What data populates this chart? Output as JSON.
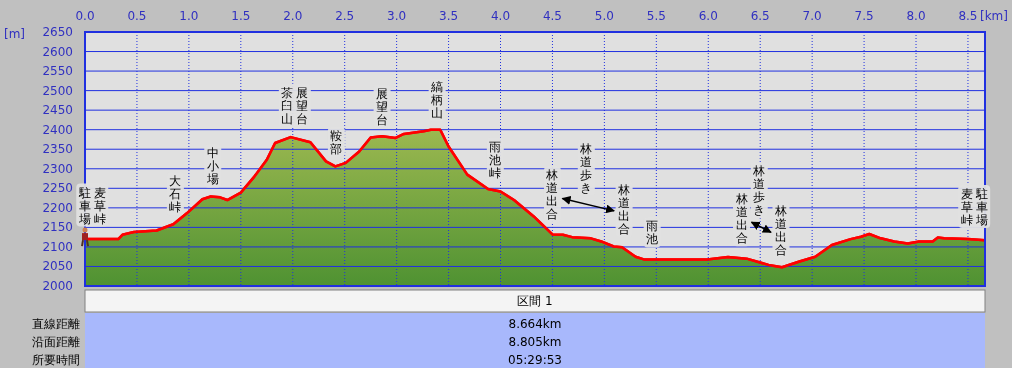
{
  "chart_data": {
    "type": "area",
    "xlabel": "[km]",
    "ylabel": "[m]",
    "xlim": [
      0,
      8.664
    ],
    "ylim": [
      2000,
      2650
    ],
    "xticks": [
      {
        "value": 0,
        "label": "0.0"
      },
      0.5,
      {
        "value": 1,
        "label": "1.0"
      },
      1.5,
      {
        "value": 2,
        "label": "2.0"
      },
      2.5,
      {
        "value": 3,
        "label": "3.0"
      },
      3.5,
      {
        "value": 4,
        "label": "4.0"
      },
      4.5,
      {
        "value": 5,
        "label": "5.0"
      },
      5.5,
      {
        "value": 6,
        "label": "6.0"
      },
      6.5,
      {
        "value": 7,
        "label": "7.0"
      },
      7.5,
      {
        "value": 8,
        "label": "8.0"
      },
      8.5
    ],
    "yticks": [
      2000,
      2050,
      2100,
      2150,
      2200,
      2250,
      2300,
      2350,
      2400,
      2450,
      2500,
      2550,
      2600,
      2650
    ],
    "grid": true,
    "series": [
      {
        "color": "#ff0000",
        "x": [
          0,
          0.15,
          0.32,
          0.36,
          0.47,
          0.69,
          0.85,
          0.98,
          1.13,
          1.21,
          1.3,
          1.37,
          1.5,
          1.63,
          1.75,
          1.83,
          1.98,
          2.17,
          2.32,
          2.41,
          2.51,
          2.64,
          2.75,
          2.86,
          2.99,
          3.07,
          3.26,
          3.33,
          3.42,
          3.5,
          3.68,
          3.88,
          4.0,
          4.13,
          4.32,
          4.5,
          4.6,
          4.69,
          4.87,
          4.97,
          5.09,
          5.17,
          5.3,
          5.38,
          5.99,
          6.19,
          6.37,
          6.58,
          6.71,
          6.87,
          7.03,
          7.19,
          7.37,
          7.47,
          7.55,
          7.66,
          7.79,
          7.92,
          8.03,
          8.16,
          8.21,
          8.27,
          8.5,
          8.664
        ],
        "values": [
          2120,
          2120,
          2120,
          2131,
          2138,
          2142,
          2158,
          2186,
          2222,
          2229,
          2227,
          2220,
          2239,
          2280,
          2323,
          2366,
          2381,
          2368,
          2319,
          2306,
          2315,
          2344,
          2380,
          2383,
          2379,
          2389,
          2396,
          2400,
          2400,
          2357,
          2285,
          2248,
          2242,
          2220,
          2178,
          2132,
          2131,
          2125,
          2122,
          2114,
          2101,
          2099,
          2075,
          2068,
          2068,
          2074,
          2070,
          2054,
          2048,
          2062,
          2075,
          2105,
          2120,
          2126,
          2133,
          2122,
          2114,
          2109,
          2114,
          2114,
          2124,
          2122,
          2120,
          2117
        ]
      }
    ],
    "annotations": [
      {
        "text": "麦草峠駐車場",
        "x": 0.07,
        "y": 2120
      },
      {
        "text": "大石峠",
        "x": 0.87,
        "y": 2162
      },
      {
        "text": "中小場",
        "x": 1.23,
        "y": 2228
      },
      {
        "text": "展望台茶臼山",
        "x": 2.02,
        "y": 2378
      },
      {
        "text": "鞍部",
        "x": 2.42,
        "y": 2307
      },
      {
        "text": "展望台",
        "x": 2.86,
        "y": 2383
      },
      {
        "text": "縞柄山",
        "x": 3.39,
        "y": 2400
      },
      {
        "text": "雨池峠",
        "x": 3.95,
        "y": 2245
      },
      {
        "text": "林道出合",
        "x": 4.5,
        "y": 2132
      },
      {
        "text": "林道出合",
        "x": 5.19,
        "y": 2095
      },
      {
        "text": "雨池",
        "x": 5.46,
        "y": 2068
      },
      {
        "text": "林道出合",
        "x": 6.32,
        "y": 2071
      },
      {
        "text": "林道出合",
        "x": 6.7,
        "y": 2048
      },
      {
        "text": "駐車場麦草峠",
        "x": 8.56,
        "y": 2119
      },
      "林道歩き",
      "林道歩き",
      "区間 1",
      "直線距離",
      "8.664km",
      "沿面距離",
      "8.805km",
      "所要時間",
      "05:29:53"
    ]
  }
}
